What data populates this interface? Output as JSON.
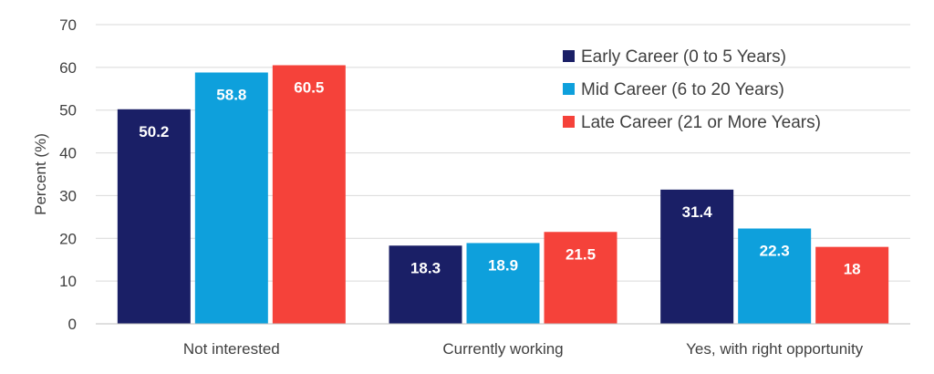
{
  "chart_data": {
    "type": "bar",
    "title": "",
    "xlabel": "",
    "ylabel": "Percent (%)",
    "ylim": [
      0,
      70
    ],
    "yticks": [
      0,
      10,
      20,
      30,
      40,
      50,
      60,
      70
    ],
    "grid": true,
    "legend_position": "top-right",
    "categories": [
      "Not interested",
      "Currently working",
      "Yes, with right opportunity"
    ],
    "series": [
      {
        "name": "Early Career (0 to 5 Years)",
        "color": "#1a1f66",
        "values": [
          50.2,
          18.3,
          31.4
        ],
        "labels": [
          "50.2",
          "18.3",
          "31.4"
        ]
      },
      {
        "name": "Mid Career (6 to 20 Years)",
        "color": "#0ea0dc",
        "values": [
          58.8,
          18.9,
          22.3
        ],
        "labels": [
          "58.8",
          "18.9",
          "22.3"
        ]
      },
      {
        "name": "Late Career (21 or More Years)",
        "color": "#f5423a",
        "values": [
          60.5,
          21.5,
          18
        ],
        "labels": [
          "60.5",
          "21.5",
          "18"
        ]
      }
    ]
  }
}
